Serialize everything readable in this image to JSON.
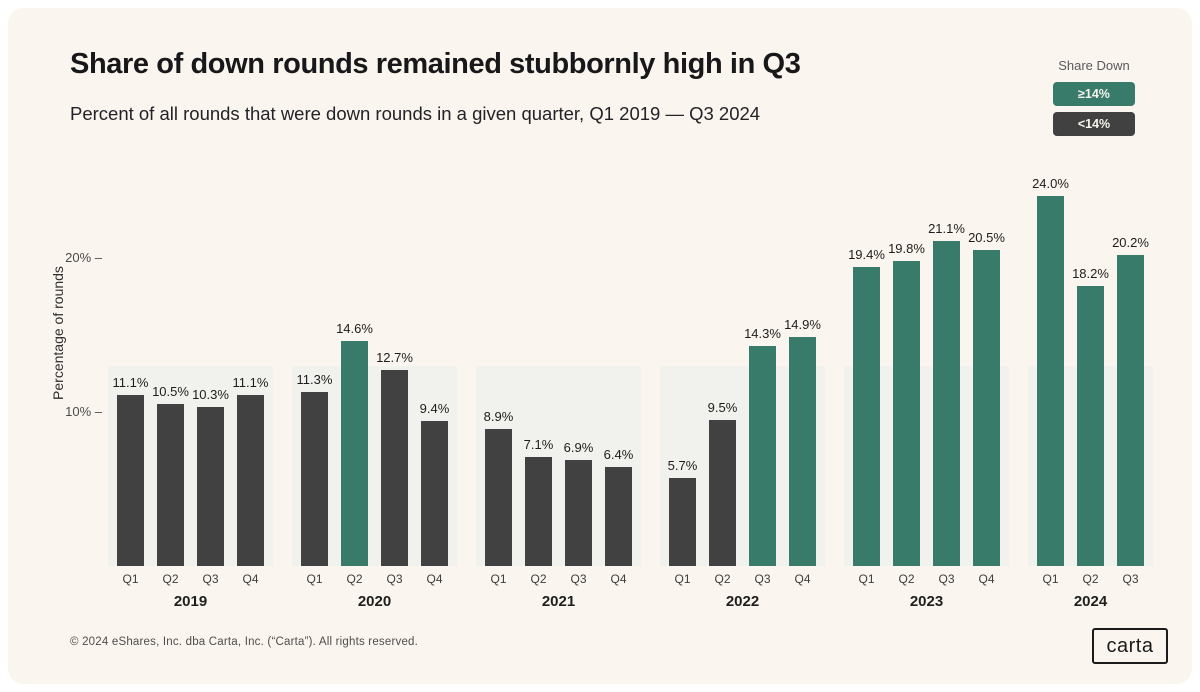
{
  "header": {
    "title": "Share of down rounds remained stubbornly high in Q3",
    "subtitle": "Percent of all rounds that were down rounds in a given quarter, Q1 2019 — Q3 2024"
  },
  "legend": {
    "title": "Share Down",
    "items": [
      {
        "label": "≥14%",
        "color": "#397b6a"
      },
      {
        "label": "<14%",
        "color": "#414141"
      }
    ]
  },
  "chart_data": {
    "type": "bar",
    "title": "Share of down rounds remained stubbornly high in Q3",
    "ylabel": "Percentage of rounds",
    "ylim": [
      0,
      24
    ],
    "yticks": [
      {
        "label": "10% –",
        "value": 10
      },
      {
        "label": "20% –",
        "value": 20
      }
    ],
    "threshold": 14,
    "legend_position": "top-right",
    "grid": false,
    "groups": [
      {
        "year": "2019",
        "quarters": [
          "Q1",
          "Q2",
          "Q3",
          "Q4"
        ],
        "values": [
          11.1,
          10.5,
          10.3,
          11.1
        ]
      },
      {
        "year": "2020",
        "quarters": [
          "Q1",
          "Q2",
          "Q3",
          "Q4"
        ],
        "values": [
          11.3,
          14.6,
          12.7,
          9.4
        ]
      },
      {
        "year": "2021",
        "quarters": [
          "Q1",
          "Q2",
          "Q3",
          "Q4"
        ],
        "values": [
          8.9,
          7.1,
          6.9,
          6.4
        ]
      },
      {
        "year": "2022",
        "quarters": [
          "Q1",
          "Q2",
          "Q3",
          "Q4"
        ],
        "values": [
          5.7,
          9.5,
          14.3,
          14.9
        ]
      },
      {
        "year": "2023",
        "quarters": [
          "Q1",
          "Q2",
          "Q3",
          "Q4"
        ],
        "values": [
          19.4,
          19.8,
          21.1,
          20.5
        ]
      },
      {
        "year": "2024",
        "quarters": [
          "Q1",
          "Q2",
          "Q3"
        ],
        "values": [
          24.0,
          18.2,
          20.2
        ]
      }
    ],
    "colors": {
      "high": "#397b6a",
      "low": "#414141",
      "panel": "#f1f1ee",
      "background": "#faf5ee"
    }
  },
  "footer": {
    "copyright": "© 2024 eShares, Inc. dba Carta, Inc. (“Carta”). All rights reserved.",
    "logo": "carta"
  }
}
